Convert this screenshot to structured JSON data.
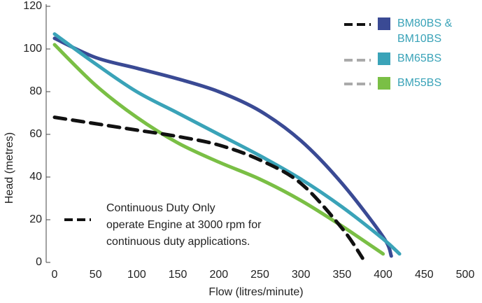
{
  "chart_data": {
    "type": "line",
    "x_label": "Flow (litres/minute)",
    "y_label": "Head (metres)",
    "xlim": [
      0,
      500
    ],
    "xticks": [
      0,
      50,
      100,
      150,
      200,
      250,
      300,
      350,
      400,
      450,
      500
    ],
    "ylim": [
      0,
      120
    ],
    "yticks": [
      0,
      20,
      40,
      60,
      80,
      100,
      120
    ],
    "grid": false,
    "series": [
      {
        "name": "BM80BS & BM10BS",
        "color": "#3a4a94",
        "dashed": false,
        "x": [
          0,
          50,
          100,
          150,
          200,
          250,
          300,
          350,
          400,
          410
        ],
        "values": [
          105,
          96,
          91,
          86,
          80,
          71,
          57,
          37,
          12,
          3
        ]
      },
      {
        "name": "BM65BS",
        "color": "#3aa3b8",
        "dashed": false,
        "x": [
          0,
          50,
          100,
          150,
          200,
          250,
          300,
          350,
          400,
          420
        ],
        "values": [
          107,
          93,
          80,
          70,
          60,
          50,
          39,
          26,
          11,
          4
        ]
      },
      {
        "name": "BM55BS",
        "color": "#7abf45",
        "dashed": false,
        "x": [
          0,
          50,
          100,
          150,
          200,
          250,
          300,
          350,
          400
        ],
        "values": [
          102,
          83,
          68,
          56,
          47,
          39,
          29,
          17,
          4
        ]
      },
      {
        "name": "Continuous Duty Only",
        "color": "#111111",
        "dashed": true,
        "x": [
          0,
          50,
          100,
          150,
          200,
          250,
          300,
          350,
          375
        ],
        "values": [
          68,
          65,
          62,
          59,
          55,
          48,
          37,
          16,
          2
        ]
      }
    ],
    "annotation": [
      "operate Engine at 3000 rpm for",
      "continuous duty applications."
    ]
  }
}
